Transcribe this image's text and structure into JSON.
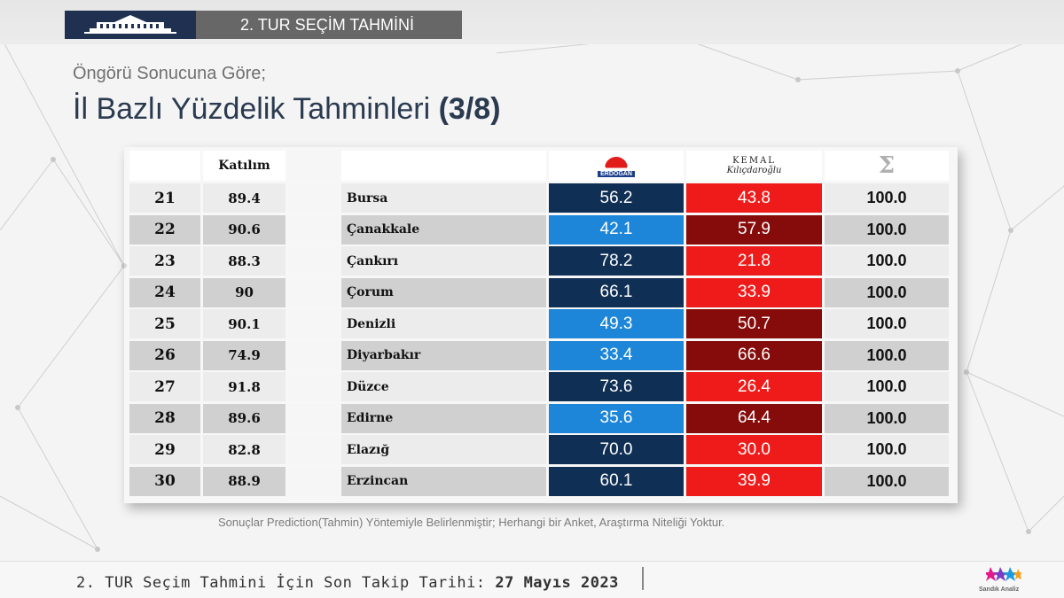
{
  "header": {
    "banner_title": "2. TUR SEÇİM TAHMİNİ"
  },
  "heading": {
    "subtitle": "Öngörü Sonucuna Göre;",
    "title": "İl Bazlı Yüzdelik Tahminleri",
    "page_indicator": "(3/8)"
  },
  "table": {
    "participation_header": "Katılım",
    "candidate_1": "ERDOĞAN",
    "candidate_2_line1": "KEMAL",
    "candidate_2_line2": "Kılıçdaroğlu",
    "sum_header": "Σ",
    "rows": [
      {
        "num": "21",
        "participation": "89.4",
        "province": "Bursa",
        "erdogan": "56.2",
        "kilicdaroglu": "43.8",
        "total": "100.0",
        "leader": "e"
      },
      {
        "num": "22",
        "participation": "90.6",
        "province": "Çanakkale",
        "erdogan": "42.1",
        "kilicdaroglu": "57.9",
        "total": "100.0",
        "leader": "k"
      },
      {
        "num": "23",
        "participation": "88.3",
        "province": "Çankırı",
        "erdogan": "78.2",
        "kilicdaroglu": "21.8",
        "total": "100.0",
        "leader": "e"
      },
      {
        "num": "24",
        "participation": "90",
        "province": "Çorum",
        "erdogan": "66.1",
        "kilicdaroglu": "33.9",
        "total": "100.0",
        "leader": "e"
      },
      {
        "num": "25",
        "participation": "90.1",
        "province": "Denizli",
        "erdogan": "49.3",
        "kilicdaroglu": "50.7",
        "total": "100.0",
        "leader": "k"
      },
      {
        "num": "26",
        "participation": "74.9",
        "province": "Diyarbakır",
        "erdogan": "33.4",
        "kilicdaroglu": "66.6",
        "total": "100.0",
        "leader": "k"
      },
      {
        "num": "27",
        "participation": "91.8",
        "province": "Düzce",
        "erdogan": "73.6",
        "kilicdaroglu": "26.4",
        "total": "100.0",
        "leader": "e"
      },
      {
        "num": "28",
        "participation": "89.6",
        "province": "Edirne",
        "erdogan": "35.6",
        "kilicdaroglu": "64.4",
        "total": "100.0",
        "leader": "k"
      },
      {
        "num": "29",
        "participation": "82.8",
        "province": "Elazığ",
        "erdogan": "70.0",
        "kilicdaroglu": "30.0",
        "total": "100.0",
        "leader": "e"
      },
      {
        "num": "30",
        "participation": "88.9",
        "province": "Erzincan",
        "erdogan": "60.1",
        "kilicdaroglu": "39.9",
        "total": "100.0",
        "leader": "e"
      }
    ]
  },
  "colors": {
    "erdogan_lead": "#102f54",
    "erdogan_trail": "#1e86d8",
    "kilicdaroglu_lead": "#ef1b1b",
    "kilicdaroglu_trail": "#860b0b"
  },
  "note": "Sonuçlar Prediction(Tahmin) Yöntemiyle Belirlenmiştir; Herhangi bir Anket, Araştırma Niteliği Yoktur.",
  "footer": {
    "text": "2. TUR Seçim Tahmini İçin Son Takip Tarihi:",
    "date": "27 Mayıs 2023",
    "brand": "Sandık Analiz"
  }
}
